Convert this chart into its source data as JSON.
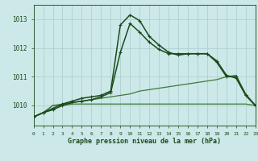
{
  "title": "Graphe pression niveau de la mer (hPa)",
  "bg_color": "#cce8e8",
  "grid_color": "#aacccc",
  "color_light": "#3a7a3a",
  "color_dark": "#1a4a1a",
  "xlim": [
    0,
    23
  ],
  "ylim": [
    1009.3,
    1013.5
  ],
  "yticks": [
    1010,
    1011,
    1012,
    1013
  ],
  "xticks": [
    0,
    1,
    2,
    3,
    4,
    5,
    6,
    7,
    8,
    9,
    10,
    11,
    12,
    13,
    14,
    15,
    16,
    17,
    18,
    19,
    20,
    21,
    22,
    23
  ],
  "series": [
    {
      "name": "flat_bottom",
      "x": [
        0,
        1,
        2,
        3,
        4,
        5,
        6,
        7,
        8,
        9,
        10,
        11,
        12,
        13,
        14,
        15,
        16,
        17,
        18,
        19,
        20,
        21,
        22,
        23
      ],
      "y": [
        1009.6,
        1009.75,
        1010.0,
        1010.0,
        1010.05,
        1010.05,
        1010.05,
        1010.05,
        1010.05,
        1010.05,
        1010.05,
        1010.05,
        1010.05,
        1010.05,
        1010.05,
        1010.05,
        1010.05,
        1010.05,
        1010.05,
        1010.05,
        1010.05,
        1010.05,
        1010.05,
        1010.0
      ],
      "color": "#3a7a3a",
      "lw": 0.9,
      "marker": null,
      "ms": 0
    },
    {
      "name": "rising_line",
      "x": [
        0,
        1,
        2,
        3,
        4,
        5,
        6,
        7,
        8,
        9,
        10,
        11,
        12,
        13,
        14,
        15,
        16,
        17,
        18,
        19,
        20,
        21,
        22,
        23
      ],
      "y": [
        1009.6,
        1009.75,
        1010.0,
        1010.05,
        1010.1,
        1010.15,
        1010.2,
        1010.25,
        1010.3,
        1010.35,
        1010.4,
        1010.5,
        1010.55,
        1010.6,
        1010.65,
        1010.7,
        1010.75,
        1010.8,
        1010.85,
        1010.9,
        1011.0,
        1011.05,
        1010.4,
        1010.0
      ],
      "color": "#3a7a3a",
      "lw": 0.9,
      "marker": null,
      "ms": 0
    },
    {
      "name": "main_lower",
      "x": [
        0,
        1,
        2,
        3,
        4,
        5,
        6,
        7,
        8,
        9,
        10,
        11,
        12,
        13,
        14,
        15,
        16,
        17,
        18,
        19,
        20,
        21,
        22,
        23
      ],
      "y": [
        1009.6,
        1009.75,
        1009.85,
        1010.0,
        1010.1,
        1010.15,
        1010.2,
        1010.3,
        1010.45,
        1011.85,
        1012.85,
        1012.55,
        1012.2,
        1011.95,
        1011.8,
        1011.8,
        1011.8,
        1011.8,
        1011.8,
        1011.55,
        1011.05,
        1010.95,
        1010.35,
        1010.0
      ],
      "color": "#1a4a1a",
      "lw": 1.1,
      "marker": "+",
      "ms": 3.5
    },
    {
      "name": "main_upper",
      "x": [
        0,
        1,
        2,
        3,
        4,
        5,
        6,
        7,
        8,
        9,
        10,
        11,
        12,
        13,
        14,
        15,
        16,
        17,
        18,
        19,
        20,
        21,
        22,
        23
      ],
      "y": [
        1009.6,
        1009.75,
        1009.9,
        1010.05,
        1010.15,
        1010.25,
        1010.3,
        1010.35,
        1010.5,
        1012.8,
        1013.15,
        1012.95,
        1012.4,
        1012.1,
        1011.85,
        1011.75,
        1011.8,
        1011.8,
        1011.8,
        1011.5,
        1011.0,
        1011.0,
        1010.35,
        1010.0
      ],
      "color": "#1a4a1a",
      "lw": 1.1,
      "marker": "+",
      "ms": 3.5
    }
  ]
}
